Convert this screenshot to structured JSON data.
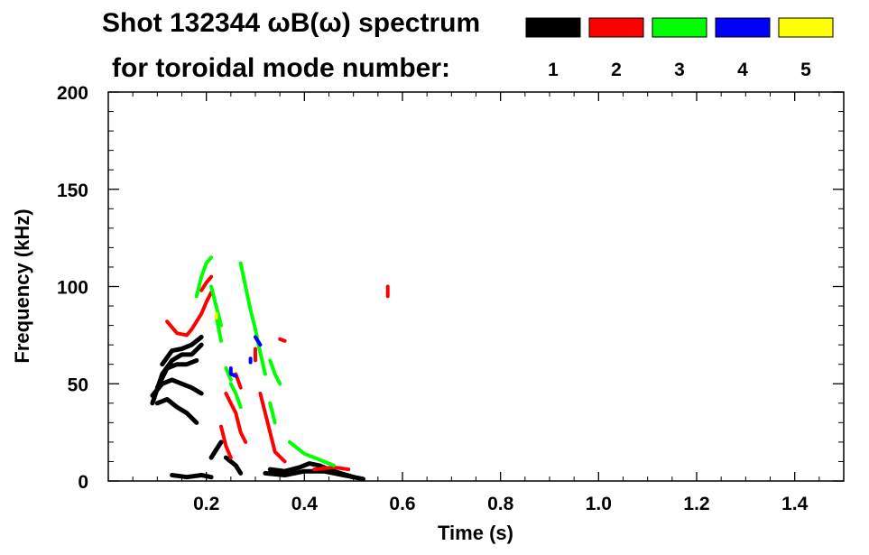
{
  "chart_data": {
    "type": "heatmap",
    "title_line1": "Shot 132344 ωB(ω) spectrum",
    "title_line2": "for toroidal mode number:",
    "xlabel": "Time (s)",
    "ylabel": "Frequency (kHz)",
    "xlim": [
      0,
      1.5
    ],
    "ylim": [
      0,
      200
    ],
    "x_ticks": [
      0.2,
      0.4,
      0.6,
      0.8,
      1.0,
      1.2,
      1.4
    ],
    "x_tick_labels": [
      "0.2",
      "0.4",
      "0.6",
      "0.8",
      "1.0",
      "1.2",
      "1.4"
    ],
    "y_ticks": [
      0,
      50,
      100,
      150,
      200
    ],
    "y_tick_labels": [
      "0",
      "50",
      "100",
      "150",
      "200"
    ],
    "legend": [
      {
        "mode": "1",
        "color": "#000000"
      },
      {
        "mode": "2",
        "color": "#ff0000"
      },
      {
        "mode": "3",
        "color": "#00ff00"
      },
      {
        "mode": "4",
        "color": "#0000ff"
      },
      {
        "mode": "5",
        "color": "#ffff00"
      }
    ],
    "series": [
      {
        "name": "n=1",
        "color": "#000000",
        "tracks": [
          [
            [
              0.09,
              40
            ],
            [
              0.11,
              55
            ],
            [
              0.13,
              62
            ],
            [
              0.15,
              65
            ],
            [
              0.17,
              65
            ],
            [
              0.19,
              70
            ]
          ],
          [
            [
              0.11,
              60
            ],
            [
              0.13,
              67
            ],
            [
              0.15,
              68
            ],
            [
              0.17,
              70
            ],
            [
              0.19,
              74
            ]
          ],
          [
            [
              0.1,
              48
            ],
            [
              0.12,
              58
            ],
            [
              0.14,
              60
            ],
            [
              0.16,
              60
            ],
            [
              0.18,
              62
            ]
          ],
          [
            [
              0.09,
              44
            ],
            [
              0.11,
              50
            ],
            [
              0.13,
              52
            ],
            [
              0.15,
              50
            ],
            [
              0.17,
              48
            ],
            [
              0.19,
              45
            ]
          ],
          [
            [
              0.1,
              40
            ],
            [
              0.12,
              42
            ],
            [
              0.14,
              38
            ],
            [
              0.16,
              35
            ],
            [
              0.18,
              30
            ]
          ],
          [
            [
              0.33,
              6
            ],
            [
              0.36,
              5
            ],
            [
              0.39,
              7
            ],
            [
              0.41,
              9
            ],
            [
              0.43,
              8
            ],
            [
              0.46,
              5
            ],
            [
              0.5,
              2
            ]
          ],
          [
            [
              0.32,
              4
            ],
            [
              0.36,
              3
            ],
            [
              0.4,
              5
            ],
            [
              0.44,
              5
            ],
            [
              0.48,
              3
            ],
            [
              0.52,
              1
            ]
          ],
          [
            [
              0.13,
              3
            ],
            [
              0.16,
              2
            ],
            [
              0.19,
              3
            ],
            [
              0.21,
              2
            ]
          ],
          [
            [
              0.21,
              12
            ],
            [
              0.22,
              16
            ],
            [
              0.23,
              20
            ]
          ],
          [
            [
              0.24,
              12
            ],
            [
              0.26,
              8
            ],
            [
              0.27,
              4
            ]
          ]
        ]
      },
      {
        "name": "n=2",
        "color": "#ff0000",
        "tracks": [
          [
            [
              0.12,
              82
            ],
            [
              0.14,
              76
            ],
            [
              0.16,
              75
            ],
            [
              0.17,
              78
            ],
            [
              0.19,
              86
            ],
            [
              0.2,
              92
            ],
            [
              0.21,
              97
            ]
          ],
          [
            [
              0.19,
              98
            ],
            [
              0.2,
              102
            ],
            [
              0.21,
              105
            ]
          ],
          [
            [
              0.24,
              45
            ],
            [
              0.25,
              40
            ],
            [
              0.26,
              35
            ],
            [
              0.27,
              25
            ],
            [
              0.28,
              20
            ]
          ],
          [
            [
              0.23,
              28
            ],
            [
              0.24,
              18
            ],
            [
              0.25,
              12
            ]
          ],
          [
            [
              0.26,
              55
            ],
            [
              0.27,
              48
            ]
          ],
          [
            [
              0.31,
              45
            ],
            [
              0.32,
              35
            ],
            [
              0.33,
              25
            ],
            [
              0.34,
              15
            ],
            [
              0.36,
              10
            ]
          ],
          [
            [
              0.42,
              6
            ],
            [
              0.46,
              7
            ],
            [
              0.49,
              6
            ]
          ],
          [
            [
              0.35,
              73
            ],
            [
              0.36,
              72
            ]
          ],
          [
            [
              0.3,
              68
            ],
            [
              0.3,
              62
            ]
          ],
          [
            [
              0.57,
              100
            ],
            [
              0.57,
              95
            ]
          ]
        ]
      },
      {
        "name": "n=3",
        "color": "#00ff00",
        "tracks": [
          [
            [
              0.18,
              95
            ],
            [
              0.19,
              105
            ],
            [
              0.2,
              112
            ],
            [
              0.21,
              115
            ]
          ],
          [
            [
              0.21,
              100
            ],
            [
              0.22,
              90
            ],
            [
              0.23,
              80
            ]
          ],
          [
            [
              0.25,
              50
            ],
            [
              0.26,
              45
            ],
            [
              0.27,
              38
            ]
          ],
          [
            [
              0.27,
              112
            ],
            [
              0.28,
              100
            ],
            [
              0.29,
              88
            ],
            [
              0.3,
              78
            ],
            [
              0.31,
              66
            ],
            [
              0.32,
              55
            ]
          ],
          [
            [
              0.33,
              62
            ],
            [
              0.34,
              55
            ],
            [
              0.35,
              50
            ]
          ],
          [
            [
              0.22,
              85
            ],
            [
              0.23,
              72
            ]
          ],
          [
            [
              0.37,
              20
            ],
            [
              0.4,
              14
            ],
            [
              0.44,
              10
            ],
            [
              0.46,
              8
            ]
          ],
          [
            [
              0.24,
              58
            ],
            [
              0.25,
              52
            ]
          ],
          [
            [
              0.33,
              40
            ],
            [
              0.34,
              30
            ]
          ]
        ]
      },
      {
        "name": "n=4",
        "color": "#0000ff",
        "tracks": [
          [
            [
              0.25,
              58
            ],
            [
              0.25,
              55
            ],
            [
              0.26,
              54
            ]
          ],
          [
            [
              0.3,
              74
            ],
            [
              0.31,
              70
            ]
          ],
          [
            [
              0.29,
              63
            ],
            [
              0.29,
              61
            ]
          ]
        ]
      },
      {
        "name": "n=5",
        "color": "#ffff00",
        "tracks": [
          [
            [
              0.22,
              86
            ],
            [
              0.22,
              84
            ]
          ]
        ]
      }
    ]
  }
}
